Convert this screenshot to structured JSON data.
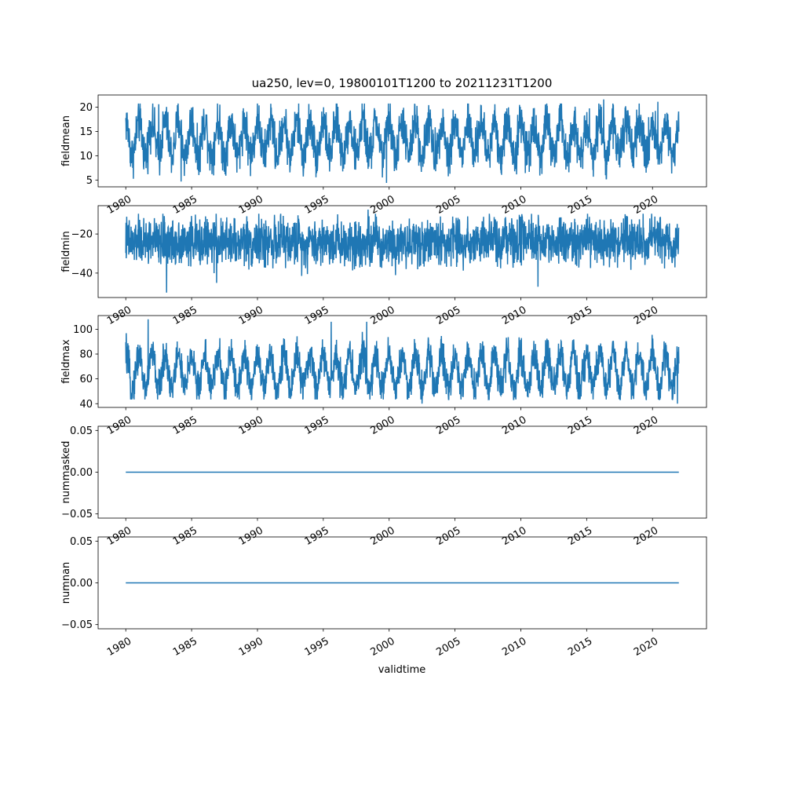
{
  "figure": {
    "title": "ua250, lev=0, 19800101T1200 to 20211231T1200",
    "xlabel": "validtime",
    "line_color": "#1f77b4"
  },
  "chart_data": [
    {
      "type": "line",
      "ylabel": "fieldmean",
      "x_range": [
        1980.0,
        2022.0
      ],
      "xlim": [
        1977.9,
        2024.1
      ],
      "ylim": [
        3.6,
        22.5
      ],
      "yticks": [
        5,
        10,
        15,
        20
      ],
      "ytick_labels": [
        "5",
        "10",
        "15",
        "20"
      ],
      "profile": "seasonal",
      "baseline": 13.5,
      "amplitude": 3.5,
      "noise": 2.2,
      "extremes": [
        [
          1982.5,
          20.6
        ],
        [
          1984.2,
          4.7
        ],
        [
          1999.8,
          4.4
        ],
        [
          2016.3,
          21.6
        ],
        [
          2020.4,
          21.1
        ]
      ],
      "observed_range": [
        4.4,
        21.6
      ]
    },
    {
      "type": "line",
      "ylabel": "fieldmin",
      "x_range": [
        1980.0,
        2022.0
      ],
      "xlim": [
        1977.9,
        2024.1
      ],
      "ylim": [
        -52.5,
        -5.5
      ],
      "yticks": [
        -40,
        -20
      ],
      "ytick_labels": [
        "−40",
        "−20"
      ],
      "profile": "noisy",
      "baseline": -24,
      "amplitude": 3,
      "noise": 6,
      "extremes": [
        [
          1983.1,
          -50.0
        ],
        [
          1998.4,
          -7.5
        ],
        [
          2011.3,
          -47.0
        ],
        [
          1986.9,
          -45.0
        ]
      ],
      "observed_range": [
        -50.0,
        -7.5
      ]
    },
    {
      "type": "line",
      "ylabel": "fieldmax",
      "x_range": [
        1980.0,
        2022.0
      ],
      "xlim": [
        1977.9,
        2024.1
      ],
      "ylim": [
        37.0,
        111.0
      ],
      "yticks": [
        40,
        60,
        80,
        100
      ],
      "ytick_labels": [
        "40",
        "60",
        "80",
        "100"
      ],
      "profile": "seasonal",
      "baseline": 66,
      "amplitude": 14,
      "noise": 7,
      "extremes": [
        [
          1981.7,
          108.0
        ],
        [
          1995.6,
          106.0
        ],
        [
          1998.3,
          106.0
        ],
        [
          2002.5,
          40.0
        ],
        [
          2021.9,
          40.0
        ]
      ],
      "observed_range": [
        40.0,
        108.0
      ]
    },
    {
      "type": "line",
      "ylabel": "nummasked",
      "x_range": [
        1980.0,
        2022.0
      ],
      "xlim": [
        1977.9,
        2024.1
      ],
      "ylim": [
        -0.055,
        0.055
      ],
      "yticks": [
        -0.05,
        0.0,
        0.05
      ],
      "ytick_labels": [
        "−0.05",
        "0.00",
        "0.05"
      ],
      "profile": "constant",
      "baseline": 0.0,
      "observed_range": [
        0.0,
        0.0
      ]
    },
    {
      "type": "line",
      "ylabel": "numnan",
      "x_range": [
        1980.0,
        2022.0
      ],
      "xlim": [
        1977.9,
        2024.1
      ],
      "ylim": [
        -0.055,
        0.055
      ],
      "yticks": [
        -0.05,
        0.0,
        0.05
      ],
      "ytick_labels": [
        "−0.05",
        "0.00",
        "0.05"
      ],
      "profile": "constant",
      "baseline": 0.0,
      "observed_range": [
        0.0,
        0.0
      ]
    }
  ],
  "x_axis": {
    "ticks": [
      1980,
      1985,
      1990,
      1995,
      2000,
      2005,
      2010,
      2015,
      2020
    ],
    "tick_labels": [
      "1980",
      "1985",
      "1990",
      "1995",
      "2000",
      "2005",
      "2010",
      "2015",
      "2020"
    ],
    "label_rotation_deg": 30
  }
}
